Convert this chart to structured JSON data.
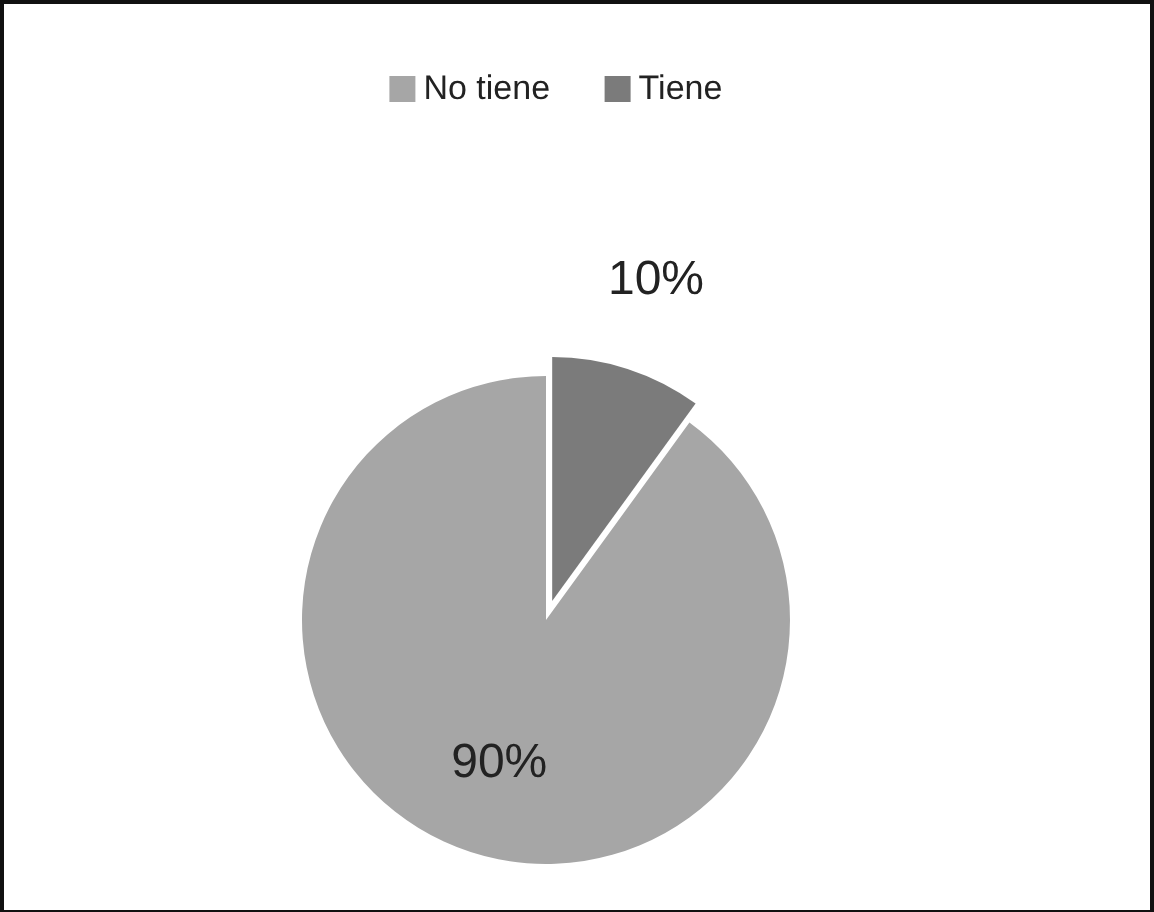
{
  "chart_data": {
    "type": "pie",
    "categories": [
      "No tiene",
      "Tiene"
    ],
    "values": [
      90,
      10
    ],
    "colors": [
      "#a6a6a6",
      "#7b7b7b"
    ],
    "value_labels": [
      "90%",
      "10%"
    ],
    "legend": "top"
  }
}
